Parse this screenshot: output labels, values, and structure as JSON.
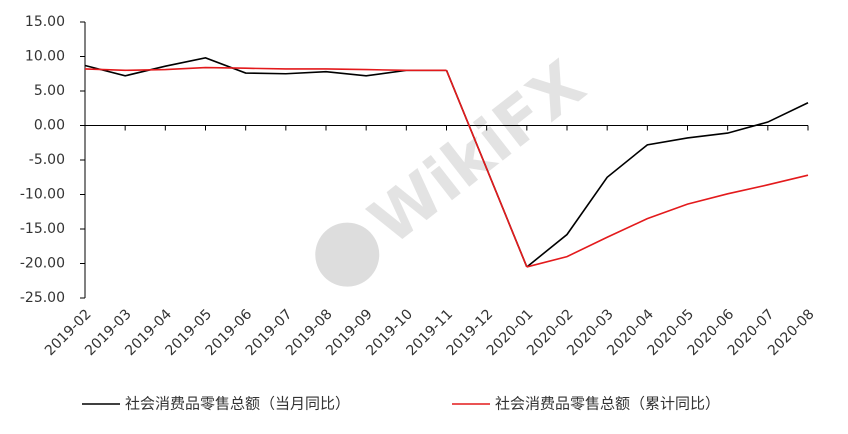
{
  "chart_data": {
    "type": "line",
    "watermark": "WikiFX",
    "categories": [
      "2019-02",
      "2019-03",
      "2019-04",
      "2019-05",
      "2019-06",
      "2019-07",
      "2019-08",
      "2019-09",
      "2019-10",
      "2019-11",
      "2019-12",
      "2020-01",
      "2020-02",
      "2020-03",
      "2020-04",
      "2020-05",
      "2020-06",
      "2020-07",
      "2020-08"
    ],
    "series": [
      {
        "name": "社会消费品零售总额（当月同比）",
        "color": "#000000",
        "values": [
          8.7,
          7.2,
          8.6,
          9.8,
          7.6,
          7.5,
          7.8,
          7.2,
          8.0,
          8.0,
          null,
          -20.5,
          -15.8,
          -7.5,
          -2.8,
          -1.8,
          -1.1,
          0.5,
          3.3
        ]
      },
      {
        "name": "社会消费品零售总额（累计同比）",
        "color": "#e31a1c",
        "values": [
          8.2,
          8.0,
          8.1,
          8.4,
          8.3,
          8.2,
          8.2,
          8.1,
          8.0,
          8.0,
          null,
          -20.5,
          -19.0,
          -16.2,
          -13.5,
          -11.4,
          -9.9,
          -8.6,
          -7.2
        ]
      }
    ],
    "connect_gaps": true,
    "ylim": [
      -25,
      15
    ],
    "yticks": [
      {
        "value": -25,
        "label": "-25.00"
      },
      {
        "value": -20,
        "label": "-20.00"
      },
      {
        "value": -15,
        "label": "-15.00"
      },
      {
        "value": -10,
        "label": "-10.00"
      },
      {
        "value": -5,
        "label": "-5.00"
      },
      {
        "value": 0,
        "label": "0.00"
      },
      {
        "value": 5,
        "label": "5.00"
      },
      {
        "value": 10,
        "label": "10.00"
      },
      {
        "value": 15,
        "label": "15.00"
      }
    ],
    "grid": false,
    "legend": "bottom"
  }
}
